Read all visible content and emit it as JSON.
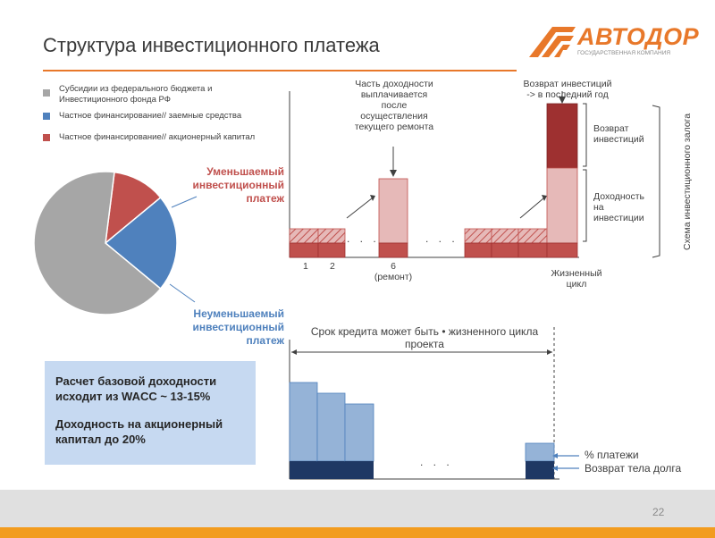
{
  "title": "Структура инвестиционного платежа",
  "logo": {
    "name": "АВТОДОР",
    "subtitle": "ГОСУДАРСТВЕННАЯ КОМПАНИЯ"
  },
  "legend": [
    {
      "text": "Субсидии из федерального бюджета и Инвестиционного фонда РФ",
      "line1": "Субсидии из федерального бюджета и",
      "line2": "Инвестиционного фонда РФ",
      "color": "#a6a6a6"
    },
    {
      "text": "Частное финансирование// заемные средства",
      "color": "#4f81bd"
    },
    {
      "text": "Частное финансирование// акционерный капитал",
      "color": "#c0504d"
    }
  ],
  "pie": {
    "slices": [
      {
        "label": "Субсидии",
        "percent": 66,
        "color": "#a6a6a6"
      },
      {
        "label": "Заемные средства",
        "percent": 22,
        "color": "#4f81bd"
      },
      {
        "label": "Акционерный капитал",
        "percent": 12,
        "color": "#c0504d"
      }
    ]
  },
  "labels": {
    "reducible": [
      "Уменьшаемый",
      "инвестиционный",
      "платеж"
    ],
    "nonreducible": [
      "Неуменьшаемый",
      "инвестиционный",
      "платеж"
    ]
  },
  "top_chart": {
    "note_repair": [
      "Часть доходности",
      "выплачивается",
      "после",
      "осуществления",
      "текущего ремонта"
    ],
    "note_return": [
      "Возврат инвестиций",
      "-> в последний год"
    ],
    "bracket_return": [
      "Возврат",
      "инвестиций"
    ],
    "bracket_yield": [
      "Доходность",
      "на",
      "инвестиции"
    ],
    "side_label": "Схема инвестиционного залога",
    "x_labels": {
      "one": "1",
      "two": "2",
      "six": "6",
      "repair": "(ремонт)"
    },
    "life_cycle": [
      "Жизненный",
      "цикл"
    ],
    "dots": ". . ."
  },
  "bottom_chart": {
    "title": [
      "Срок кредита может быть • жизненного цикла",
      "проекта"
    ],
    "legend_payments": "% платежи",
    "legend_principal": "Возврат тела долга",
    "dots": ". . ."
  },
  "infobox": {
    "line1": "Расчет базовой доходности",
    "line2": "исходит из WACC ~ 13-15%",
    "line3": "Доходность на акционерный",
    "line4": "капитал до 20%"
  },
  "page_number": "22",
  "colors": {
    "accent": "#e8782a",
    "dark_red": "#9e3030",
    "red": "#c0504d",
    "pink": "#e6b9b8",
    "light_blue": "#95b3d7",
    "navy": "#1f3864",
    "grey": "#a6a6a6"
  }
}
